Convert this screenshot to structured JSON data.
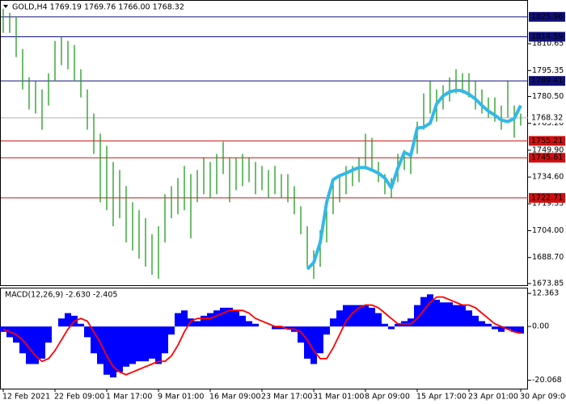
{
  "chart_data": [
    {
      "type": "price-bars",
      "title": "GOLD,H4  1769.19 1769.76 1766.00 1768.32",
      "categories": [
        "12 Feb 2021",
        null,
        null,
        null,
        null,
        null,
        null,
        null,
        "22 Feb 09:00",
        null,
        null,
        null,
        null,
        null,
        null,
        null,
        "1 Mar 17:00",
        null,
        null,
        null,
        null,
        null,
        null,
        null,
        "9 Mar 01:00",
        null,
        null,
        null,
        null,
        null,
        null,
        null,
        "16 Mar 09:00",
        null,
        null,
        null,
        null,
        null,
        null,
        null,
        "23 Mar 17:00",
        null,
        null,
        null,
        null,
        null,
        null,
        null,
        "31 Mar 01:00",
        null,
        null,
        null,
        null,
        null,
        null,
        null,
        "8 Apr 09:00",
        null,
        null,
        null,
        null,
        null,
        null,
        null,
        "15 Apr 17:00",
        null,
        null,
        null,
        null,
        null,
        null,
        null,
        "23 Apr 01:00",
        null,
        null,
        null,
        null,
        null,
        null,
        null,
        "30 Apr 09:00"
      ],
      "high": [
        1830.6,
        1828.3,
        1826.0,
        1807.6,
        1791.5,
        1789.2,
        1784.6,
        1793.8,
        1812.2,
        1814.5,
        1812.2,
        1809.9,
        1796.1,
        1784.6,
        1770.8,
        1759.3,
        1752.4,
        1743.2,
        1738.6,
        1729.4,
        1720.2,
        1715.7,
        1711.1,
        1701.9,
        1706.5,
        1724.8,
        1729.4,
        1734.0,
        1740.9,
        1736.3,
        1738.6,
        1745.5,
        1743.2,
        1747.8,
        1754.7,
        1745.5,
        1745.5,
        1747.8,
        1745.5,
        1743.2,
        1740.9,
        1738.6,
        1740.9,
        1736.3,
        1736.3,
        1729.4,
        1717.9,
        1706.5,
        1692.7,
        1704.2,
        1715.7,
        1731.7,
        1736.3,
        1740.9,
        1740.9,
        1745.5,
        1759.3,
        1757.0,
        1743.2,
        1736.3,
        1734.0,
        1747.8,
        1750.1,
        1747.8,
        1766.2,
        1782.3,
        1789.2,
        1784.6,
        1786.9,
        1791.5,
        1796.1,
        1793.8,
        1793.8,
        1789.2,
        1784.6,
        1780.0,
        1780.0,
        1775.4,
        1789.2,
        1775.4,
        1770.8
      ],
      "low": [
        1816.8,
        1816.8,
        1803.0,
        1784.6,
        1773.1,
        1770.8,
        1761.6,
        1775.4,
        1789.2,
        1798.4,
        1796.1,
        1789.2,
        1780.0,
        1761.6,
        1747.8,
        1720.2,
        1715.7,
        1706.5,
        1711.1,
        1697.3,
        1692.7,
        1688.1,
        1683.5,
        1678.9,
        1676.6,
        1697.3,
        1711.1,
        1713.4,
        1715.7,
        1699.6,
        1720.2,
        1724.8,
        1722.5,
        1724.8,
        1736.3,
        1720.2,
        1727.1,
        1729.4,
        1731.7,
        1724.8,
        1727.1,
        1722.5,
        1724.8,
        1722.5,
        1720.2,
        1713.4,
        1701.9,
        1683.5,
        1676.6,
        1683.5,
        1697.3,
        1713.4,
        1720.2,
        1724.8,
        1729.4,
        1731.7,
        1740.9,
        1738.6,
        1731.7,
        1724.8,
        1722.5,
        1731.7,
        1738.6,
        1736.3,
        1747.8,
        1761.6,
        1770.8,
        1766.2,
        1773.1,
        1777.7,
        1782.3,
        1782.3,
        1780.0,
        1773.1,
        1770.8,
        1768.5,
        1766.2,
        1761.6,
        1768.5,
        1757.0,
        1763.9
      ],
      "color": "#1f9a1f",
      "series": [
        {
          "color": "#33b8e8",
          "values": [
            null,
            null,
            null,
            null,
            null,
            null,
            null,
            null,
            null,
            null,
            null,
            null,
            null,
            null,
            null,
            null,
            null,
            null,
            null,
            null,
            null,
            null,
            null,
            null,
            null,
            null,
            null,
            null,
            null,
            null,
            null,
            null,
            null,
            null,
            null,
            null,
            null,
            null,
            null,
            null,
            null,
            null,
            null,
            null,
            null,
            null,
            null,
            1682.1,
            1685.8,
            1697.3,
            1720.2,
            1733.1,
            1735.4,
            1736.8,
            1738.6,
            1740.0,
            1740.0,
            1738.6,
            1736.8,
            1734.0,
            1728.5,
            1739.6,
            1748.7,
            1746.9,
            1762.5,
            1763.0,
            1765.3,
            1776.3,
            1780.9,
            1783.2,
            1784.1,
            1783.7,
            1781.8,
            1779.1,
            1775.4,
            1772.2,
            1769.9,
            1767.1,
            1766.2,
            1768.0,
            1775.4
          ]
        }
      ],
      "ylim": [
        1672.9,
        1835.1
      ],
      "yticks": [
        1810.65,
        1795.35,
        {
          "value": 1780.5,
          "label": "1780.50"
        },
        {
          "value": 1765.2,
          "label": "1765.20"
        },
        {
          "value": 1749.9,
          "label": "1749.90"
        },
        {
          "value": 1734.6,
          "label": "1734.60"
        },
        1719.35,
        {
          "value": 1704,
          "label": "1704.00"
        },
        {
          "value": 1688.7,
          "label": "1688.70"
        },
        1673.85
      ],
      "levels": [
        {
          "value": 1825.96,
          "color": "#10107a"
        },
        {
          "value": 1814.59,
          "color": "#10107a"
        },
        {
          "value": 1789.41,
          "color": "#10107a"
        },
        {
          "value": 1755.21,
          "color": "#d01010"
        },
        {
          "value": 1745.61,
          "color": "#d01010"
        },
        {
          "value": 1722.71,
          "color": "#d01010"
        }
      ],
      "current": {
        "value": 1768.32,
        "color": "#b0b0b0"
      }
    },
    {
      "type": "macd",
      "title": "MACD(12,26,9) -2.630 -2.405",
      "series": [
        {
          "color": "#0000ff",
          "values": [
            -2,
            -4,
            -6,
            -10,
            -14,
            -14,
            -12,
            -6,
            0,
            3,
            5,
            4,
            1,
            -4,
            -10,
            -14,
            -18,
            -19,
            -17,
            -15,
            -14,
            -13,
            -13,
            -12,
            -14,
            -10,
            -3,
            5,
            6,
            3,
            2,
            4,
            5,
            6,
            7,
            7,
            6,
            4,
            2,
            1,
            0,
            0,
            -1,
            -1,
            -1,
            -2,
            -6,
            -12,
            -14,
            -10,
            -3,
            3,
            6,
            8,
            8,
            8,
            8,
            7,
            5,
            1,
            -1,
            1,
            2,
            3,
            8,
            11,
            12,
            10,
            9,
            9,
            8,
            8,
            6,
            4,
            2,
            1,
            -1,
            -2,
            -1,
            -2,
            -2.63
          ]
        },
        {
          "color": "#ff0000",
          "values": [
            -1,
            -2,
            -3,
            -5,
            -8,
            -11,
            -13,
            -12,
            -9,
            -5,
            -1,
            2,
            3,
            2,
            -2,
            -6,
            -11,
            -15,
            -17,
            -18,
            -17,
            -16,
            -15,
            -14,
            -13,
            -13,
            -11,
            -7,
            -2,
            2,
            3,
            3,
            3,
            4,
            5,
            6,
            6,
            6,
            5,
            3,
            2,
            1,
            0,
            0,
            -1,
            -1,
            -2,
            -5,
            -9,
            -12,
            -12,
            -8,
            -3,
            2,
            5,
            7,
            8,
            8,
            7,
            5,
            3,
            1,
            1,
            1,
            3,
            6,
            9,
            11,
            11,
            10,
            9,
            8,
            8,
            7,
            5,
            3,
            1,
            0,
            -1,
            -2,
            -2.405
          ]
        }
      ],
      "ylim": [
        -23.2,
        14.2
      ],
      "yticks": [
        12.363,
        {
          "value": 0,
          "label": "0.00"
        },
        -20.068
      ]
    }
  ]
}
